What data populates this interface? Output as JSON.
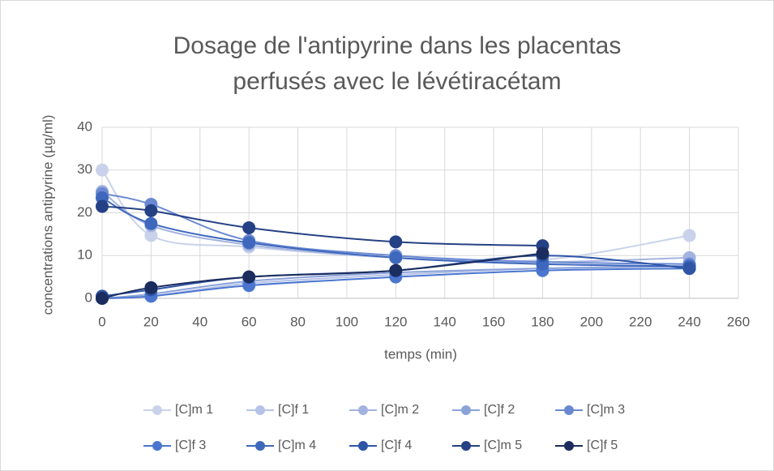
{
  "chart_data": {
    "type": "line",
    "title": [
      "Dosage de l'antipyrine dans les placentas",
      "perfusés avec le lévétiracétam"
    ],
    "x_label": "temps (min)",
    "y_label": "concentrations antipyrine (µg/ml)",
    "x": [
      0,
      20,
      60,
      120,
      180,
      240
    ],
    "xlim": [
      0,
      260
    ],
    "xticks": [
      0,
      20,
      40,
      60,
      80,
      100,
      120,
      140,
      160,
      180,
      200,
      220,
      240,
      260
    ],
    "ylim": [
      0,
      40
    ],
    "yticks": [
      0,
      10,
      20,
      30,
      40
    ],
    "grid": true,
    "legend": "bottom",
    "series": [
      {
        "name": "[C]m 1",
        "color": "#c9d2ea",
        "values": [
          30,
          14.7,
          12,
          9.5,
          9,
          14.7
        ]
      },
      {
        "name": "[C]f 1",
        "color": "#b6c3e6",
        "values": [
          0,
          0.5,
          3.5,
          5.5,
          7,
          7.5
        ]
      },
      {
        "name": "[C]m 2",
        "color": "#a2b3e0",
        "values": [
          25,
          17,
          12.5,
          9.5,
          8.5,
          9.5
        ]
      },
      {
        "name": "[C]f 2",
        "color": "#8ba2da",
        "values": [
          0,
          1,
          4,
          6,
          7,
          7.5
        ]
      },
      {
        "name": "[C]m 3",
        "color": "#6b89d2",
        "values": [
          24.5,
          22,
          13.5,
          10,
          8.5,
          8
        ]
      },
      {
        "name": "[C]f 3",
        "color": "#4a76d0",
        "values": [
          0,
          0.5,
          3,
          5,
          6.5,
          7
        ]
      },
      {
        "name": "[C]m 4",
        "color": "#3e68bd",
        "values": [
          23.5,
          17.5,
          13,
          9.5,
          8,
          7.5
        ]
      },
      {
        "name": "[C]f 4",
        "color": "#2f55a6",
        "values": [
          0.5,
          2,
          5,
          6.5,
          10,
          7
        ]
      },
      {
        "name": "[C]m 5",
        "color": "#254185",
        "values": [
          21.5,
          20.5,
          16.5,
          13.2,
          12.3,
          null
        ]
      },
      {
        "name": "[C]f 5",
        "color": "#1b2d5e",
        "values": [
          0,
          2.5,
          5,
          6.5,
          10.5,
          null
        ]
      }
    ]
  }
}
